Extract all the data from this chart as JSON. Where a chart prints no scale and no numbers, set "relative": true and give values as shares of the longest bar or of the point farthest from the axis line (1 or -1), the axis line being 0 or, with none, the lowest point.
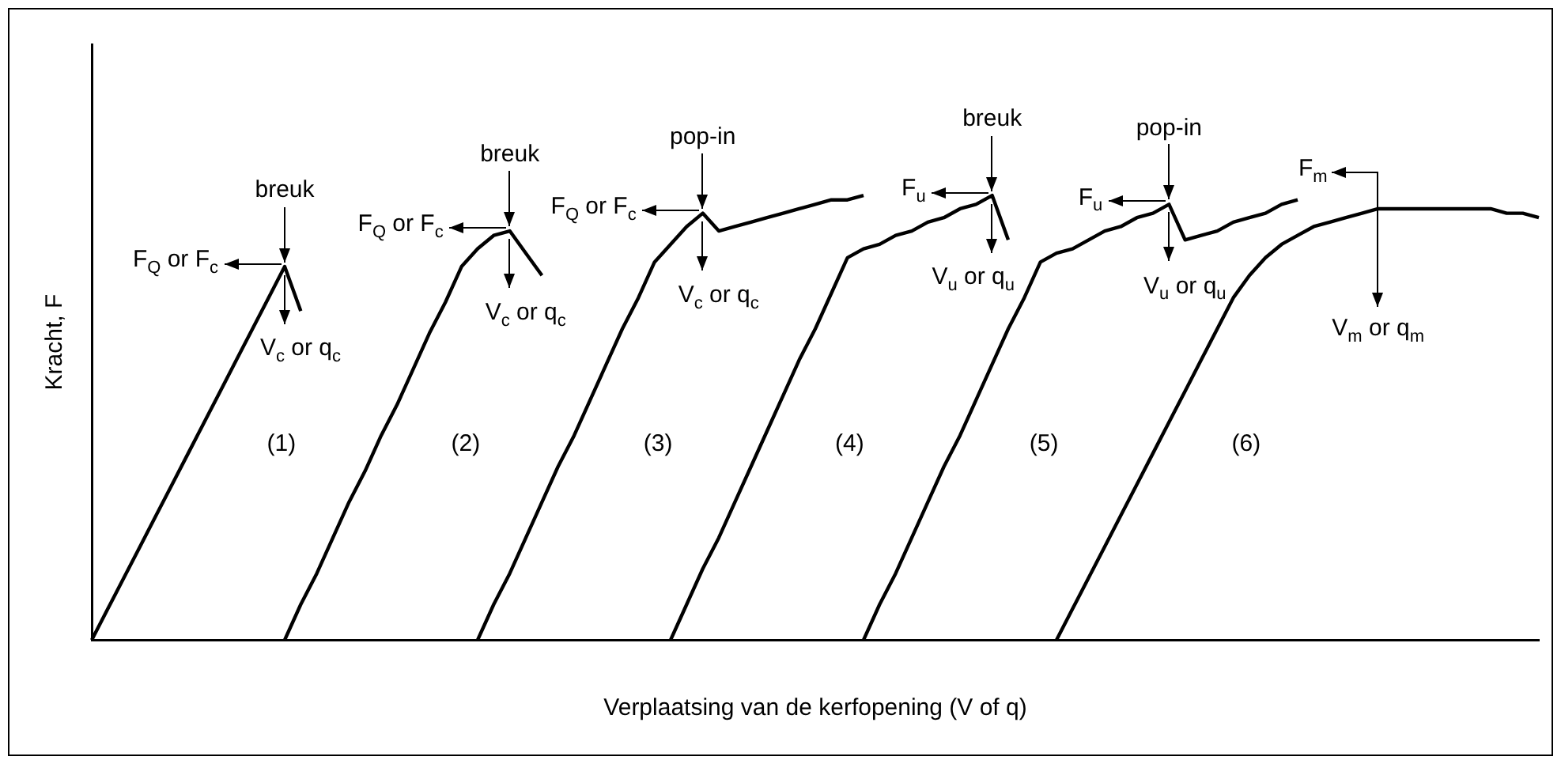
{
  "chart_data": {
    "type": "line",
    "relative": true,
    "xlabel": "Verplaatsing van de kerfopening (V of q)",
    "ylabel": "Kracht, F",
    "legend": false,
    "categories": [
      null,
      null,
      null,
      null,
      null,
      null,
      null,
      null,
      null,
      null,
      null,
      null,
      null,
      null,
      null,
      null,
      null,
      null,
      null,
      null,
      null,
      null,
      null,
      null,
      null,
      null,
      null,
      null,
      null,
      null,
      null,
      null,
      null,
      null,
      null,
      null,
      null,
      null,
      null,
      null,
      null,
      null,
      null,
      null,
      null,
      null,
      null,
      null,
      null,
      null,
      null,
      null,
      null,
      null,
      null,
      null,
      null,
      null,
      null,
      null,
      null,
      null,
      null,
      null,
      null,
      null,
      null,
      null,
      null,
      null,
      null,
      null,
      null,
      null,
      null,
      null,
      null,
      null,
      null,
      null,
      null,
      null,
      null,
      null,
      null,
      null,
      null,
      null,
      null,
      null,
      null
    ],
    "series": [
      {
        "name": "(1)",
        "color": "#000000",
        "values": [
          0,
          0.07,
          0.14,
          0.21,
          0.28,
          0.35,
          0.42,
          0.49,
          0.56,
          0.63,
          0.7,
          0.77,
          0.84,
          0.74,
          null,
          null,
          null,
          null,
          null,
          null,
          null,
          null,
          null,
          null,
          null,
          null,
          null,
          null,
          null,
          null,
          null,
          null,
          null,
          null,
          null,
          null,
          null,
          null,
          null,
          null,
          null,
          null,
          null,
          null,
          null,
          null,
          null,
          null,
          null,
          null,
          null,
          null,
          null,
          null,
          null,
          null,
          null,
          null,
          null,
          null,
          null,
          null,
          null,
          null,
          null,
          null,
          null,
          null,
          null,
          null,
          null,
          null,
          null,
          null,
          null,
          null,
          null,
          null,
          null,
          null,
          null,
          null,
          null,
          null,
          null,
          null,
          null,
          null,
          null,
          null,
          null
        ]
      },
      {
        "name": "(2)",
        "color": "#000000",
        "values": [
          null,
          null,
          null,
          null,
          null,
          null,
          null,
          null,
          null,
          null,
          null,
          null,
          0,
          0.08,
          0.15,
          0.23,
          0.31,
          0.38,
          0.46,
          0.53,
          0.61,
          0.69,
          0.76,
          0.84,
          0.88,
          0.91,
          0.92,
          0.87,
          0.82,
          null,
          null,
          null,
          null,
          null,
          null,
          null,
          null,
          null,
          null,
          null,
          null,
          null,
          null,
          null,
          null,
          null,
          null,
          null,
          null,
          null,
          null,
          null,
          null,
          null,
          null,
          null,
          null,
          null,
          null,
          null,
          null,
          null,
          null,
          null,
          null,
          null,
          null,
          null,
          null,
          null,
          null,
          null,
          null,
          null,
          null,
          null,
          null,
          null,
          null,
          null,
          null,
          null,
          null,
          null,
          null,
          null,
          null,
          null,
          null,
          null,
          null
        ]
      },
      {
        "name": "(3)",
        "color": "#000000",
        "values": [
          null,
          null,
          null,
          null,
          null,
          null,
          null,
          null,
          null,
          null,
          null,
          null,
          null,
          null,
          null,
          null,
          null,
          null,
          null,
          null,
          null,
          null,
          null,
          null,
          0,
          0.08,
          0.15,
          0.23,
          0.31,
          0.39,
          0.46,
          0.54,
          0.62,
          0.7,
          0.77,
          0.85,
          0.89,
          0.93,
          0.96,
          0.92,
          0.93,
          0.94,
          0.95,
          0.96,
          0.97,
          0.98,
          0.99,
          0.99,
          1.0,
          null,
          null,
          null,
          null,
          null,
          null,
          null,
          null,
          null,
          null,
          null,
          null,
          null,
          null,
          null,
          null,
          null,
          null,
          null,
          null,
          null,
          null,
          null,
          null,
          null,
          null,
          null,
          null,
          null,
          null,
          null,
          null,
          null,
          null,
          null,
          null,
          null,
          null,
          null,
          null,
          null,
          null
        ]
      },
      {
        "name": "(4)",
        "color": "#000000",
        "values": [
          null,
          null,
          null,
          null,
          null,
          null,
          null,
          null,
          null,
          null,
          null,
          null,
          null,
          null,
          null,
          null,
          null,
          null,
          null,
          null,
          null,
          null,
          null,
          null,
          null,
          null,
          null,
          null,
          null,
          null,
          null,
          null,
          null,
          null,
          null,
          null,
          0,
          0.08,
          0.16,
          0.23,
          0.31,
          0.39,
          0.47,
          0.55,
          0.63,
          0.7,
          0.78,
          0.86,
          0.88,
          0.89,
          0.91,
          0.92,
          0.94,
          0.95,
          0.97,
          0.98,
          1.0,
          0.9,
          null,
          null,
          null,
          null,
          null,
          null,
          null,
          null,
          null,
          null,
          null,
          null,
          null,
          null,
          null,
          null,
          null,
          null,
          null,
          null,
          null,
          null,
          null,
          null,
          null,
          null,
          null,
          null,
          null,
          null,
          null,
          null,
          null
        ]
      },
      {
        "name": "(5)",
        "color": "#000000",
        "values": [
          null,
          null,
          null,
          null,
          null,
          null,
          null,
          null,
          null,
          null,
          null,
          null,
          null,
          null,
          null,
          null,
          null,
          null,
          null,
          null,
          null,
          null,
          null,
          null,
          null,
          null,
          null,
          null,
          null,
          null,
          null,
          null,
          null,
          null,
          null,
          null,
          null,
          null,
          null,
          null,
          null,
          null,
          null,
          null,
          null,
          null,
          null,
          null,
          0,
          0.08,
          0.15,
          0.23,
          0.31,
          0.39,
          0.46,
          0.54,
          0.62,
          0.7,
          0.77,
          0.85,
          0.87,
          0.88,
          0.9,
          0.92,
          0.93,
          0.95,
          0.96,
          0.98,
          0.9,
          0.91,
          0.92,
          0.94,
          0.95,
          0.96,
          0.98,
          0.99,
          null,
          null,
          null,
          null,
          null,
          null,
          null,
          null,
          null,
          null,
          null,
          null,
          null,
          null,
          null
        ]
      },
      {
        "name": "(6)",
        "color": "#000000",
        "values": [
          null,
          null,
          null,
          null,
          null,
          null,
          null,
          null,
          null,
          null,
          null,
          null,
          null,
          null,
          null,
          null,
          null,
          null,
          null,
          null,
          null,
          null,
          null,
          null,
          null,
          null,
          null,
          null,
          null,
          null,
          null,
          null,
          null,
          null,
          null,
          null,
          null,
          null,
          null,
          null,
          null,
          null,
          null,
          null,
          null,
          null,
          null,
          null,
          null,
          null,
          null,
          null,
          null,
          null,
          null,
          null,
          null,
          null,
          null,
          null,
          0,
          0.07,
          0.14,
          0.21,
          0.28,
          0.35,
          0.42,
          0.49,
          0.56,
          0.63,
          0.7,
          0.77,
          0.82,
          0.86,
          0.89,
          0.91,
          0.93,
          0.94,
          0.95,
          0.96,
          0.97,
          0.97,
          0.97,
          0.97,
          0.97,
          0.97,
          0.97,
          0.97,
          0.96,
          0.96,
          0.95
        ]
      }
    ],
    "annotations": [
      "breuk",
      "F$_{Q}$ or F$_{c}$",
      "V$_{c}$ or q$_{c}$",
      "breuk",
      "F$_{Q}$ or F$_{c}$",
      "V$_{c}$ or q$_{c}$",
      "pop-in",
      "F$_{Q}$ or F$_{c}$",
      "V$_{c}$ or q$_{c}$",
      "breuk",
      "F$_{u}$",
      "V$_{u}$ or q$_{u}$",
      "pop-in",
      "F$_{u}$",
      "V$_{u}$ or q$_{u}$",
      "F$_{m}$",
      "V$_{m}$ or q$_{m}$"
    ]
  }
}
